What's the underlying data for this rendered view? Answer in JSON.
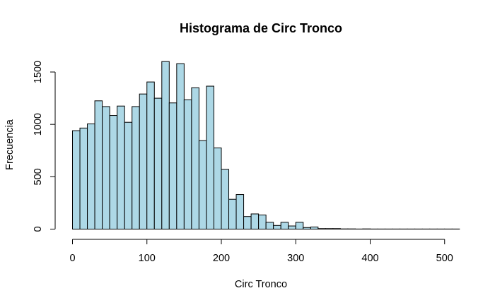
{
  "chart_data": {
    "type": "bar",
    "title": "Histograma de Circ Tronco",
    "xlabel": "Circ Tronco",
    "ylabel": "Frecuencia",
    "bin_width": 10,
    "bin_start": 0,
    "values": [
      940,
      965,
      1005,
      1225,
      1170,
      1085,
      1175,
      1020,
      1170,
      1290,
      1405,
      1250,
      1600,
      1205,
      1580,
      1235,
      1350,
      845,
      1365,
      775,
      570,
      285,
      330,
      120,
      145,
      135,
      65,
      35,
      65,
      30,
      65,
      15,
      20,
      5,
      5,
      5,
      2,
      2,
      1,
      2,
      1,
      1,
      1,
      1,
      1,
      1,
      1,
      1,
      1,
      1,
      1,
      1
    ],
    "xlim": [
      0,
      510
    ],
    "ylim": [
      0,
      1600
    ],
    "x_ticks": [
      0,
      100,
      200,
      300,
      400,
      500
    ],
    "y_ticks": [
      0,
      500,
      1000,
      1500
    ],
    "bar_color": "#ADD8E6",
    "grid": false
  }
}
